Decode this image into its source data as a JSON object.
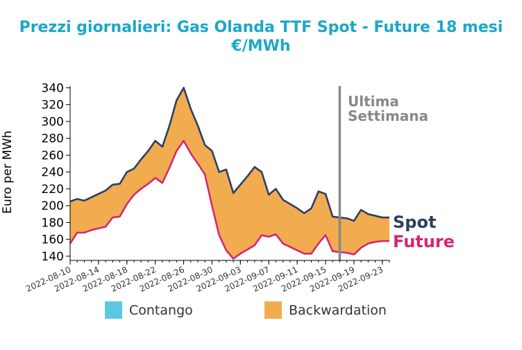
{
  "colors": {
    "title": "#1aa8c8",
    "spot": "#2e3e63",
    "future": "#d4286e",
    "backwardation": "#f0ac4e",
    "contango": "#5bc8e0",
    "vline": "#888888",
    "axis": "#000000"
  },
  "chart_data": {
    "type": "area",
    "title": "Prezzi giornalieri: Gas Olanda TTF Spot - Future 18 mesi",
    "subtitle": "€/MWh",
    "ylabel": "Euro per MWh",
    "xlabel": "",
    "ylim": [
      135,
      342
    ],
    "xlim": [
      "2022-08-10",
      "2022-09-24"
    ],
    "yticks": [
      140,
      160,
      180,
      200,
      220,
      240,
      260,
      280,
      300,
      320,
      340
    ],
    "xticks": [
      "2022-08-10",
      "2022-08-14",
      "2022-08-18",
      "2022-08-22",
      "2022-08-26",
      "2022-08-30",
      "2022-09-03",
      "2022-09-07",
      "2022-09-11",
      "2022-09-15",
      "2022-09-19",
      "2022-09-23"
    ],
    "vline": {
      "date": "2022-09-17",
      "label_line1": "Ultima",
      "label_line2": "Settimana"
    },
    "end_labels": {
      "spot": "Spot",
      "future": "Future"
    },
    "legend": [
      {
        "name": "Contango",
        "color_key": "contango"
      },
      {
        "name": "Backwardation",
        "color_key": "backwardation"
      }
    ],
    "x": [
      "2022-08-10",
      "2022-08-11",
      "2022-08-12",
      "2022-08-13",
      "2022-08-14",
      "2022-08-15",
      "2022-08-16",
      "2022-08-17",
      "2022-08-18",
      "2022-08-19",
      "2022-08-20",
      "2022-08-21",
      "2022-08-22",
      "2022-08-23",
      "2022-08-24",
      "2022-08-25",
      "2022-08-26",
      "2022-08-27",
      "2022-08-28",
      "2022-08-29",
      "2022-08-30",
      "2022-08-31",
      "2022-09-01",
      "2022-09-02",
      "2022-09-03",
      "2022-09-04",
      "2022-09-05",
      "2022-09-06",
      "2022-09-07",
      "2022-09-08",
      "2022-09-09",
      "2022-09-10",
      "2022-09-11",
      "2022-09-12",
      "2022-09-13",
      "2022-09-14",
      "2022-09-15",
      "2022-09-16",
      "2022-09-17",
      "2022-09-18",
      "2022-09-19",
      "2022-09-20",
      "2022-09-21",
      "2022-09-22",
      "2022-09-23",
      "2022-09-24"
    ],
    "series": [
      {
        "name": "Spot",
        "values": [
          205,
          208,
          206,
          210,
          214,
          218,
          225,
          226,
          240,
          244,
          255,
          265,
          277,
          270,
          295,
          325,
          340,
          315,
          295,
          272,
          265,
          240,
          243,
          215,
          225,
          235,
          246,
          240,
          213,
          220,
          207,
          202,
          197,
          191,
          197,
          217,
          214,
          187,
          186,
          185,
          182,
          195,
          190,
          188,
          186,
          186
        ]
      },
      {
        "name": "Future",
        "values": [
          155,
          168,
          168,
          171,
          173,
          175,
          186,
          187,
          202,
          213,
          220,
          226,
          233,
          227,
          245,
          265,
          277,
          262,
          250,
          237,
          200,
          165,
          147,
          137,
          143,
          148,
          153,
          165,
          163,
          166,
          155,
          151,
          147,
          143,
          143,
          155,
          165,
          146,
          145,
          144,
          142,
          150,
          155,
          157,
          158,
          158
        ]
      }
    ]
  }
}
